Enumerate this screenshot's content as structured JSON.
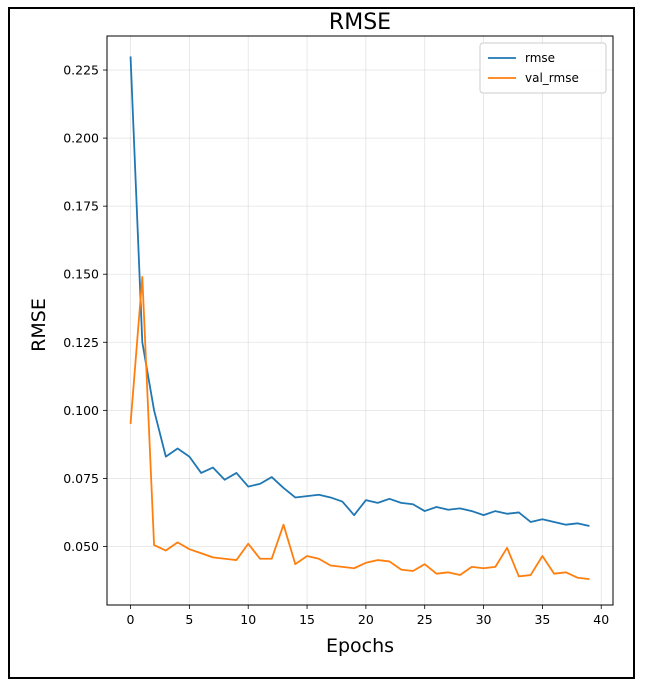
{
  "chart_data": {
    "type": "line",
    "title": "RMSE",
    "xlabel": "Epochs",
    "ylabel": "RMSE",
    "xlim": [
      -2,
      41
    ],
    "ylim": [
      0.0285,
      0.2375
    ],
    "xticks": [
      0,
      5,
      10,
      15,
      20,
      25,
      30,
      35,
      40
    ],
    "yticks": [
      0.05,
      0.075,
      0.1,
      0.125,
      0.15,
      0.175,
      0.2,
      0.225
    ],
    "ytick_labels": [
      "0.050",
      "0.075",
      "0.100",
      "0.125",
      "0.150",
      "0.175",
      "0.200",
      "0.225"
    ],
    "grid": true,
    "legend_position": "top-right",
    "x": [
      0,
      1,
      2,
      3,
      4,
      5,
      6,
      7,
      8,
      9,
      10,
      11,
      12,
      13,
      14,
      15,
      16,
      17,
      18,
      19,
      20,
      21,
      22,
      23,
      24,
      25,
      26,
      27,
      28,
      29,
      30,
      31,
      32,
      33,
      34,
      35,
      36,
      37,
      38,
      39
    ],
    "series": [
      {
        "name": "rmse",
        "color": "#1f77b4",
        "values": [
          0.23,
          0.125,
          0.1,
          0.083,
          0.086,
          0.083,
          0.077,
          0.079,
          0.0745,
          0.077,
          0.072,
          0.073,
          0.0755,
          0.0715,
          0.068,
          0.0685,
          0.069,
          0.068,
          0.0665,
          0.0615,
          0.067,
          0.066,
          0.0675,
          0.066,
          0.0655,
          0.063,
          0.0645,
          0.0635,
          0.064,
          0.063,
          0.0615,
          0.063,
          0.062,
          0.0625,
          0.059,
          0.06,
          0.059,
          0.058,
          0.0585,
          0.0575
        ]
      },
      {
        "name": "val_rmse",
        "color": "#ff7f0e",
        "values": [
          0.095,
          0.149,
          0.0505,
          0.0485,
          0.0515,
          0.049,
          0.0475,
          0.046,
          0.0455,
          0.045,
          0.051,
          0.0455,
          0.0455,
          0.058,
          0.0435,
          0.0465,
          0.0455,
          0.043,
          0.0425,
          0.042,
          0.044,
          0.045,
          0.0445,
          0.0415,
          0.041,
          0.0435,
          0.04,
          0.0405,
          0.0395,
          0.0425,
          0.042,
          0.0425,
          0.0495,
          0.039,
          0.0395,
          0.0465,
          0.04,
          0.0405,
          0.0385,
          0.038
        ]
      }
    ]
  }
}
